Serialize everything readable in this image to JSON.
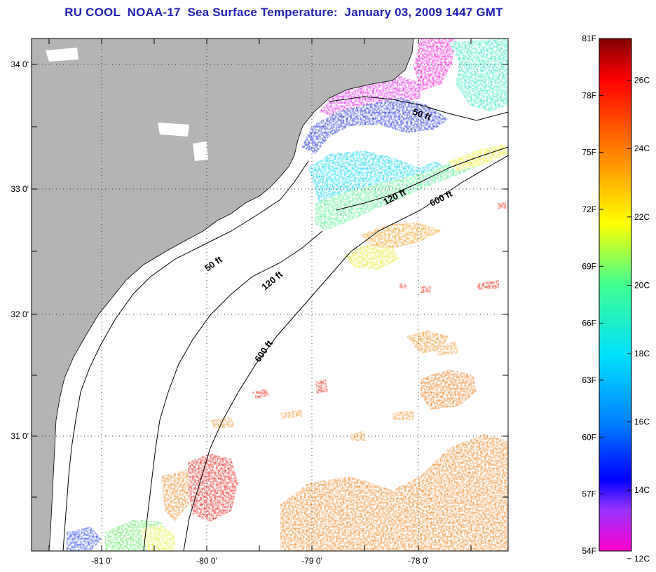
{
  "title": "RU COOL  NOAA-17  Sea Surface Temperature:  January 03, 2009 1447 GMT",
  "map": {
    "longitude_ticks": [
      "-81 0'",
      "-80 0'",
      "-79 0'",
      "-78 0'"
    ],
    "latitude_ticks": [
      "34 0'",
      "33 0'",
      "32 0'",
      "31 0'"
    ],
    "land_color": "#b4b4b4",
    "no_data_color": "#ffffff",
    "isobath_labels": [
      {
        "text": "50 ft"
      },
      {
        "text": "50 ft"
      },
      {
        "text": "120 ft"
      },
      {
        "text": "120 ft"
      },
      {
        "text": "600 ft"
      },
      {
        "text": "600 ft"
      }
    ]
  },
  "colorbar": {
    "fahrenheit_labels": [
      "81F",
      "78F",
      "75F",
      "72F",
      "69F",
      "66F",
      "63F",
      "60F",
      "57F",
      "54F"
    ],
    "celsius_labels": [
      "26C",
      "24C",
      "22C",
      "20C",
      "18C",
      "16C",
      "14C",
      "12C"
    ],
    "color_stops": [
      "#ff00cc",
      "#9933ff",
      "#0000ff",
      "#0080ff",
      "#00e0ff",
      "#40ff90",
      "#ffff00",
      "#ff8000",
      "#ff0000",
      "#800000"
    ]
  }
}
